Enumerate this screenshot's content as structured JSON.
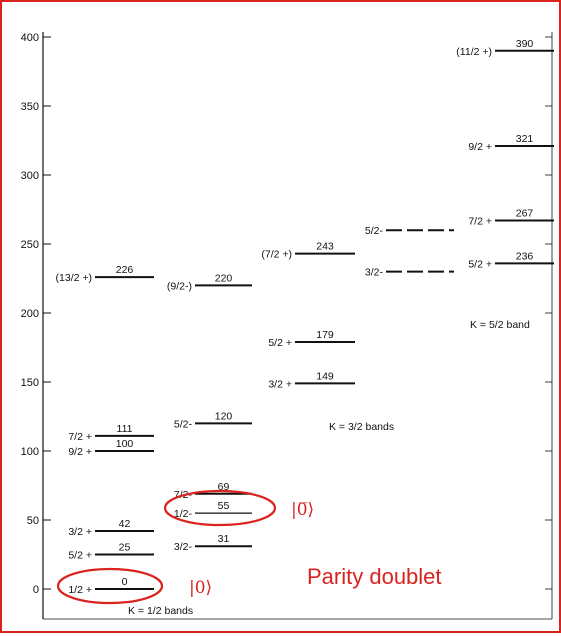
{
  "axis": {
    "min": 0,
    "max": 400,
    "ticks": [
      "0",
      "50",
      "100",
      "150",
      "200",
      "250",
      "300",
      "350",
      "400"
    ]
  },
  "levels": [
    {
      "band": 0,
      "spin": "1/2 +",
      "energy": "0",
      "value": 0
    },
    {
      "band": 0,
      "spin": "5/2 +",
      "energy": "25",
      "value": 25
    },
    {
      "band": 0,
      "spin": "3/2 +",
      "energy": "42",
      "value": 42
    },
    {
      "band": 0,
      "spin": "9/2 +",
      "energy": "100",
      "value": 100
    },
    {
      "band": 0,
      "spin": "7/2 +",
      "energy": "111",
      "value": 111
    },
    {
      "band": 0,
      "spin": "(13/2 +)",
      "energy": "226",
      "value": 226
    },
    {
      "band": 1,
      "spin": "3/2-",
      "energy": "31",
      "value": 31
    },
    {
      "band": 1,
      "spin": "1/2-",
      "energy": "55",
      "value": 55
    },
    {
      "band": 1,
      "spin": "7/2-",
      "energy": "69",
      "value": 69
    },
    {
      "band": 1,
      "spin": "5/2-",
      "energy": "120",
      "value": 120
    },
    {
      "band": 1,
      "spin": "(9/2-)",
      "energy": "220",
      "value": 220
    },
    {
      "band": 2,
      "spin": "3/2 +",
      "energy": "149",
      "value": 149
    },
    {
      "band": 2,
      "spin": "5/2 +",
      "energy": "179",
      "value": 179
    },
    {
      "band": 2,
      "spin": "(7/2 +)",
      "energy": "243",
      "value": 243
    },
    {
      "band": 3,
      "spin": "3/2-",
      "energy": "",
      "value": 230,
      "dashed": true
    },
    {
      "band": 3,
      "spin": "5/2-",
      "energy": "",
      "value": 260,
      "dashed": true
    },
    {
      "band": 4,
      "spin": "5/2 +",
      "energy": "236",
      "value": 236
    },
    {
      "band": 4,
      "spin": "7/2 +",
      "energy": "267",
      "value": 267
    },
    {
      "band": 4,
      "spin": "9/2 +",
      "energy": "321",
      "value": 321
    },
    {
      "band": 4,
      "spin": "(11/2 +)",
      "energy": "390",
      "value": 390
    }
  ],
  "band_labels": {
    "k_half": "K = 1/2 bands",
    "k_three_half": "K = 3/2 bands",
    "k_five_half": "K = 5/2 band"
  },
  "annotations": {
    "ket_zero": "|0⟩",
    "ket_zero_bar": "|0̅⟩",
    "doublet": "Parity doublet",
    "accent_color": "#d8231f"
  }
}
